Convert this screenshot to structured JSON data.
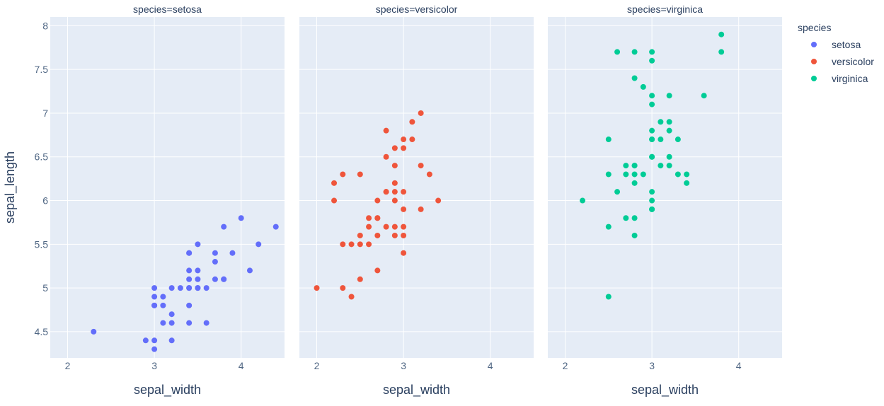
{
  "chart_data": {
    "type": "scatter",
    "facet_by": "species",
    "xlabel": "sepal_width",
    "ylabel": "sepal_length",
    "xlim": [
      1.8,
      4.5
    ],
    "ylim": [
      4.2,
      8.1
    ],
    "xticks": [
      2,
      3,
      4
    ],
    "yticks": [
      4.5,
      5,
      5.5,
      6,
      6.5,
      7,
      7.5,
      8
    ],
    "xtick_labels": [
      "2",
      "3",
      "4"
    ],
    "ytick_labels": [
      "4.5",
      "5",
      "5.5",
      "6",
      "6.5",
      "7",
      "7.5",
      "8"
    ],
    "grid": true,
    "legend_title": "species",
    "legend_position": "top-right",
    "panels": [
      {
        "title": "species=setosa",
        "name": "setosa",
        "color": "#636efa",
        "x": [
          2.3,
          2.9,
          3.0,
          3.0,
          3.0,
          3.0,
          3.0,
          3.0,
          3.1,
          3.1,
          3.1,
          3.2,
          3.2,
          3.2,
          3.2,
          3.3,
          3.4,
          3.4,
          3.4,
          3.4,
          3.4,
          3.4,
          3.4,
          3.4,
          3.5,
          3.5,
          3.5,
          3.5,
          3.5,
          3.6,
          3.6,
          3.7,
          3.7,
          3.7,
          3.8,
          3.8,
          3.8,
          3.9,
          4.0,
          4.1,
          4.2,
          4.4
        ],
        "y": [
          4.5,
          4.4,
          4.3,
          4.4,
          4.8,
          4.9,
          5.0,
          4.8,
          4.6,
          4.9,
          4.8,
          4.4,
          4.6,
          4.7,
          5.0,
          5.0,
          4.6,
          4.8,
          5.0,
          5.1,
          5.2,
          5.4,
          5.0,
          5.4,
          5.0,
          5.1,
          5.2,
          5.5,
          5.0,
          5.0,
          4.6,
          5.1,
          5.3,
          5.4,
          5.1,
          5.7,
          5.1,
          5.4,
          5.8,
          5.2,
          5.5,
          5.7
        ]
      },
      {
        "title": "species=versicolor",
        "name": "versicolor",
        "color": "#ef553b",
        "x": [
          2.0,
          2.2,
          2.2,
          2.3,
          2.3,
          2.3,
          2.4,
          2.4,
          2.5,
          2.5,
          2.5,
          2.5,
          2.6,
          2.6,
          2.6,
          2.7,
          2.7,
          2.7,
          2.7,
          2.7,
          2.8,
          2.8,
          2.8,
          2.8,
          2.8,
          2.9,
          2.9,
          2.9,
          2.9,
          2.9,
          2.9,
          2.9,
          3.0,
          3.0,
          3.0,
          3.0,
          3.0,
          3.0,
          3.0,
          3.1,
          3.1,
          3.2,
          3.2,
          3.2,
          3.3,
          3.4
        ],
        "y": [
          5.0,
          6.0,
          6.2,
          5.0,
          5.5,
          6.3,
          5.5,
          4.9,
          5.5,
          5.6,
          5.1,
          6.3,
          5.5,
          5.7,
          5.8,
          5.2,
          5.6,
          5.8,
          6.0,
          5.8,
          5.7,
          6.1,
          6.5,
          6.8,
          6.1,
          5.6,
          5.7,
          6.0,
          6.1,
          6.2,
          6.6,
          6.4,
          5.4,
          5.6,
          5.7,
          5.9,
          6.1,
          6.6,
          6.7,
          6.7,
          6.9,
          5.9,
          6.4,
          7.0,
          6.3,
          6.0
        ]
      },
      {
        "title": "species=virginica",
        "name": "virginica",
        "color": "#00cc96",
        "x": [
          2.2,
          2.5,
          2.5,
          2.5,
          2.5,
          2.6,
          2.6,
          2.7,
          2.7,
          2.7,
          2.8,
          2.8,
          2.8,
          2.8,
          2.8,
          2.8,
          2.8,
          2.8,
          2.9,
          2.9,
          3.0,
          3.0,
          3.0,
          3.0,
          3.0,
          3.0,
          3.0,
          3.0,
          3.0,
          3.0,
          3.0,
          3.0,
          3.0,
          3.1,
          3.1,
          3.1,
          3.2,
          3.2,
          3.2,
          3.2,
          3.2,
          3.3,
          3.3,
          3.4,
          3.4,
          3.6,
          3.8,
          3.8
        ],
        "y": [
          6.0,
          4.9,
          5.7,
          6.3,
          6.7,
          6.1,
          7.7,
          5.8,
          6.3,
          6.4,
          5.6,
          5.8,
          6.2,
          6.3,
          6.4,
          7.4,
          7.7,
          6.4,
          6.3,
          7.3,
          5.9,
          6.0,
          6.1,
          6.5,
          6.7,
          6.8,
          7.1,
          7.2,
          7.6,
          7.7,
          6.5,
          5.9,
          6.7,
          6.4,
          6.7,
          6.9,
          6.4,
          6.5,
          6.8,
          6.9,
          7.2,
          6.3,
          6.7,
          6.2,
          6.3,
          7.2,
          7.7,
          7.9
        ]
      }
    ]
  }
}
